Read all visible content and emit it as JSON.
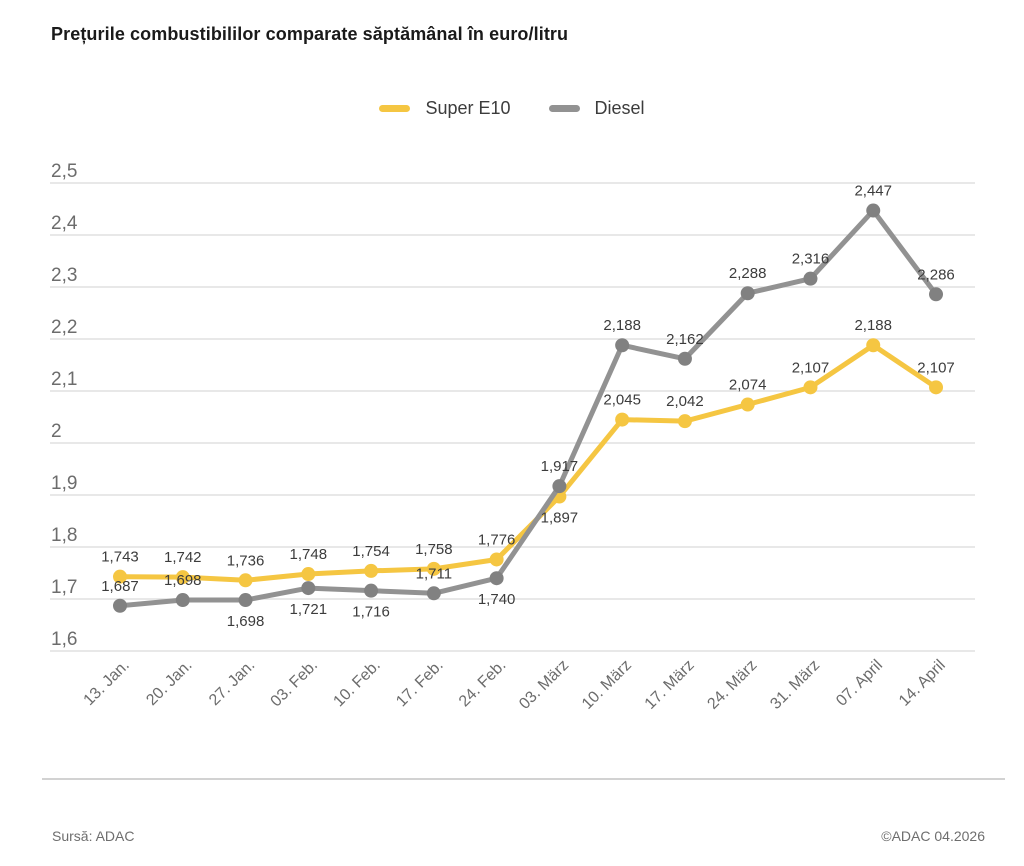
{
  "chart_data": {
    "type": "line",
    "title": "Prețurile combustibililor comparate săptămânal în euro/litru",
    "xlabel": "",
    "ylabel": "euro/litru",
    "ylim": [
      1.6,
      2.5
    ],
    "grid": true,
    "legend_position": "top",
    "categories": [
      "13. Jan.",
      "20. Jan.",
      "27. Jan.",
      "03. Feb.",
      "10. Feb.",
      "17. Feb.",
      "24. Feb.",
      "03. März",
      "10. März",
      "17. März",
      "24. März",
      "31. März",
      "07. April",
      "14. April"
    ],
    "yticks": [
      {
        "label": "2,5",
        "value": 2.5
      },
      {
        "label": "2,4",
        "value": 2.4
      },
      {
        "label": "2,3",
        "value": 2.3
      },
      {
        "label": "2,2",
        "value": 2.2
      },
      {
        "label": "2,1",
        "value": 2.1
      },
      {
        "label": "2",
        "value": 2.0
      },
      {
        "label": "1,9",
        "value": 1.9
      },
      {
        "label": "1,8",
        "value": 1.8
      },
      {
        "label": "1,7",
        "value": 1.7
      },
      {
        "label": "1,6",
        "value": 1.6
      }
    ],
    "series": [
      {
        "name": "Super E10",
        "color": "#F5C642",
        "marker_color": "#F5C642",
        "values": [
          1.743,
          1.742,
          1.736,
          1.748,
          1.754,
          1.758,
          1.776,
          1.897,
          2.045,
          2.042,
          2.074,
          2.107,
          2.188,
          2.107
        ],
        "labels": [
          "1,743",
          "1,742",
          "1,736",
          "1,748",
          "1,754",
          "1,758",
          "1,776",
          "1,897",
          "2,045",
          "2,042",
          "2,074",
          "2,107",
          "2,188",
          "2,107"
        ],
        "label_pos": [
          "above",
          "above",
          "above",
          "above",
          "above",
          "above",
          "above",
          "below",
          "above",
          "above",
          "above",
          "above",
          "above",
          "above"
        ]
      },
      {
        "name": "Diesel",
        "color": "#929292",
        "marker_color": "#818181",
        "values": [
          1.687,
          1.698,
          1.698,
          1.721,
          1.716,
          1.711,
          1.74,
          1.917,
          2.188,
          2.162,
          2.288,
          2.316,
          2.447,
          2.286
        ],
        "labels": [
          "1,687",
          "1,698",
          "1,698",
          "1,721",
          "1,716",
          "1,711",
          "1,740",
          "1,917",
          "2,188",
          "2,162",
          "2,288",
          "2,316",
          "2,447",
          "2,286"
        ],
        "label_pos": [
          "above",
          "above",
          "below",
          "below",
          "below",
          "above",
          "below",
          "above",
          "above",
          "above",
          "above",
          "above",
          "above",
          "above"
        ]
      }
    ]
  },
  "colors": {
    "grid": "#DBDBDB",
    "axis_text": "#6C6C6C",
    "data_label": "#3C3C3C",
    "divider": "#D2D2D2"
  },
  "footer": {
    "source": "Sursă: ADAC",
    "copyright": "©ADAC 04.2026"
  }
}
